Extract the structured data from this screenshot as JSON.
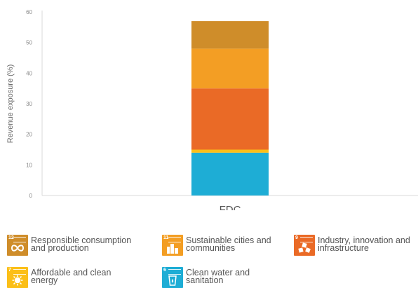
{
  "chart_data": {
    "type": "bar",
    "stacked": true,
    "categories": [
      "FDC"
    ],
    "ylabel": "Revenue exposure (%)",
    "xlabel": "",
    "ylim": [
      0,
      60
    ],
    "yticks": [
      "0",
      "10",
      "20",
      "30",
      "40",
      "50",
      "60"
    ],
    "grid": false,
    "series": [
      {
        "name": "Clean water and sanitation",
        "values": [
          14
        ],
        "color": "#1eadd5"
      },
      {
        "name": "Affordable and clean energy",
        "values": [
          1
        ],
        "color": "#fbbf18"
      },
      {
        "name": "Industry, innovation and infrastructure",
        "values": [
          20
        ],
        "color": "#ea6a26"
      },
      {
        "name": "Sustainable cities and communities",
        "values": [
          13
        ],
        "color": "#f39e24"
      },
      {
        "name": "Responsible consumption and production",
        "values": [
          9
        ],
        "color": "#cf8d2a"
      }
    ]
  },
  "legend": {
    "items": [
      {
        "label_line1": "Responsible consumption",
        "label_line2": "and production",
        "goal_number": "12",
        "color": "#cf8d2a",
        "icon": "infinity-icon"
      },
      {
        "label_line1": "Sustainable cities and",
        "label_line2": "communities",
        "goal_number": "11",
        "color": "#f39e24",
        "icon": "buildings-icon"
      },
      {
        "label_line1": "Industry, innovation and",
        "label_line2": "infrastructure",
        "goal_number": "9",
        "color": "#ea6a26",
        "icon": "cubes-icon"
      },
      {
        "label_line1": "Affordable and clean",
        "label_line2": "energy",
        "goal_number": "7",
        "color": "#fbbf18",
        "icon": "sun-icon"
      },
      {
        "label_line1": "Clean water and",
        "label_line2": "sanitation",
        "goal_number": "6",
        "color": "#1eadd5",
        "icon": "water-glass-icon"
      }
    ]
  }
}
